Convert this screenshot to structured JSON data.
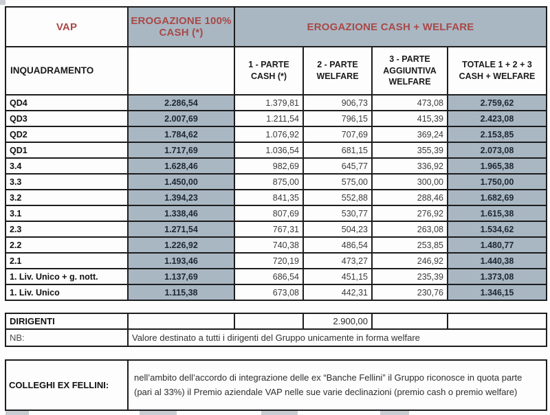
{
  "colors": {
    "header_fill": "#a9b7c3",
    "header_red_text": "#a94846",
    "border": "#1c1c1c"
  },
  "main_table": {
    "title_col1": "VAP",
    "title_col2": "EROGAZIONE 100% CASH (*)",
    "title_col3": "EROGAZIONE CASH + WELFARE",
    "inquadramento_label": "INQUADRAMENTO",
    "sub_headers": [
      "1 - PARTE CASH (*)",
      "2 - PARTE WELFARE",
      "3 - PARTE AGGIUNTIVA WELFARE",
      "TOTALE 1 + 2 + 3 CASH + WELFARE"
    ],
    "rows": [
      {
        "label": "QD4",
        "cash100": "2.286,54",
        "parte1": "1.379,81",
        "parte2": "906,73",
        "parte3": "473,08",
        "totale": "2.759,62"
      },
      {
        "label": "QD3",
        "cash100": "2.007,69",
        "parte1": "1.211,54",
        "parte2": "796,15",
        "parte3": "415,39",
        "totale": "2.423,08"
      },
      {
        "label": "QD2",
        "cash100": "1.784,62",
        "parte1": "1.076,92",
        "parte2": "707,69",
        "parte3": "369,24",
        "totale": "2.153,85"
      },
      {
        "label": "QD1",
        "cash100": "1.717,69",
        "parte1": "1.036,54",
        "parte2": "681,15",
        "parte3": "355,39",
        "totale": "2.073,08"
      },
      {
        "label": "3.4",
        "cash100": "1.628,46",
        "parte1": "982,69",
        "parte2": "645,77",
        "parte3": "336,92",
        "totale": "1.965,38"
      },
      {
        "label": "3.3",
        "cash100": "1.450,00",
        "parte1": "875,00",
        "parte2": "575,00",
        "parte3": "300,00",
        "totale": "1.750,00"
      },
      {
        "label": "3.2",
        "cash100": "1.394,23",
        "parte1": "841,35",
        "parte2": "552,88",
        "parte3": "288,46",
        "totale": "1.682,69"
      },
      {
        "label": "3.1",
        "cash100": "1.338,46",
        "parte1": "807,69",
        "parte2": "530,77",
        "parte3": "276,92",
        "totale": "1.615,38"
      },
      {
        "label": "2.3",
        "cash100": "1.271,54",
        "parte1": "767,31",
        "parte2": "504,23",
        "parte3": "263,08",
        "totale": "1.534,62"
      },
      {
        "label": "2.2",
        "cash100": "1.226,92",
        "parte1": "740,38",
        "parte2": "486,54",
        "parte3": "253,85",
        "totale": "1.480,77"
      },
      {
        "label": "2.1",
        "cash100": "1.193,46",
        "parte1": "720,19",
        "parte2": "473,27",
        "parte3": "246,92",
        "totale": "1.440,38"
      },
      {
        "label": "1. Liv. Unico + g. nott.",
        "cash100": "1.137,69",
        "parte1": "686,54",
        "parte2": "451,15",
        "parte3": "235,39",
        "totale": "1.373,08"
      },
      {
        "label": "1. Liv. Unico",
        "cash100": "1.115,38",
        "parte1": "673,08",
        "parte2": "442,31",
        "parte3": "230,76",
        "totale": "1.346,15"
      }
    ]
  },
  "dirigenti_table": {
    "label": "DIRIGENTI",
    "welfare_value": "2.900,00",
    "nb_label": "NB:",
    "nb_text": "Valore destinato a tutti i dirigenti del Gruppo unicamente in forma welfare"
  },
  "colleghi_table": {
    "label": "COLLEGHI EX FELLINI:",
    "text": "nell’ambito dell’accordo di integrazione delle ex “Banche Fellini” il Gruppo riconosce in quota parte (pari al 33%) il Premio aziendale VAP nelle sue varie declinazioni (premio cash o premio welfare)"
  }
}
